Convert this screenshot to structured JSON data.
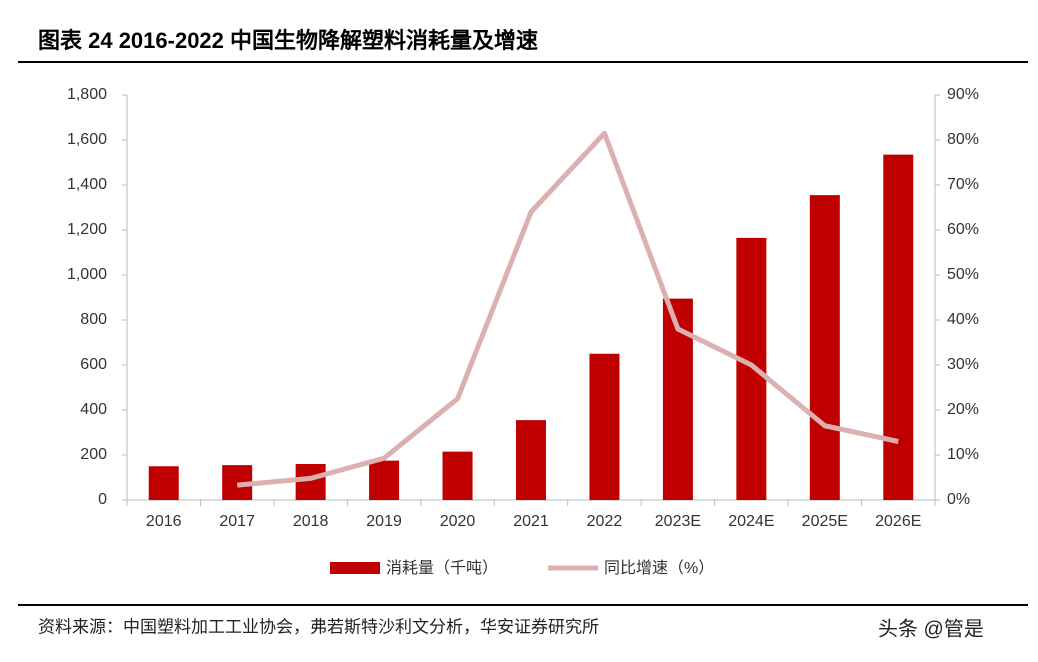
{
  "chart_data": {
    "type": "bar",
    "title": "图表 24 2016-2022 中国生物降解塑料消耗量及增速",
    "categories": [
      "2016",
      "2017",
      "2018",
      "2019",
      "2020",
      "2021",
      "2022",
      "2023E",
      "2024E",
      "2025E",
      "2026E"
    ],
    "series": [
      {
        "name": "消耗量（千吨）",
        "type": "bar",
        "color": "#c00000",
        "values": [
          150,
          155,
          160,
          175,
          215,
          355,
          650,
          895,
          1165,
          1355,
          1535
        ]
      },
      {
        "name": "同比增速（%）",
        "type": "line",
        "axis": "y2",
        "color": "#dcb0b0",
        "values": [
          null,
          3.3,
          4.8,
          9.3,
          22.5,
          64,
          81.5,
          38,
          30,
          16.5,
          13
        ]
      }
    ],
    "ylim": [
      0,
      1800
    ],
    "yticks": [
      0,
      200,
      400,
      600,
      800,
      {
        "value": 1000,
        "label": "1,000"
      },
      {
        "value": 1200,
        "label": "1,200"
      },
      {
        "value": 1400,
        "label": "1,400"
      },
      {
        "value": 1600,
        "label": "1,600"
      },
      {
        "value": 1800,
        "label": "1,800"
      }
    ],
    "y2lim": [
      0,
      90
    ],
    "y2ticks": [
      {
        "value": 0,
        "label": "0%"
      },
      {
        "value": 10,
        "label": "10%"
      },
      {
        "value": 20,
        "label": "20%"
      },
      {
        "value": 30,
        "label": "30%"
      },
      {
        "value": 40,
        "label": "40%"
      },
      {
        "value": 50,
        "label": "50%"
      },
      {
        "value": 60,
        "label": "60%"
      },
      {
        "value": 70,
        "label": "70%"
      },
      {
        "value": 80,
        "label": "80%"
      },
      {
        "value": 90,
        "label": "90%"
      }
    ],
    "source": "资料来源：中国塑料加工工业协会，弗若斯特沙利文分析，华安证券研究所",
    "watermark": "头条 @管是"
  }
}
